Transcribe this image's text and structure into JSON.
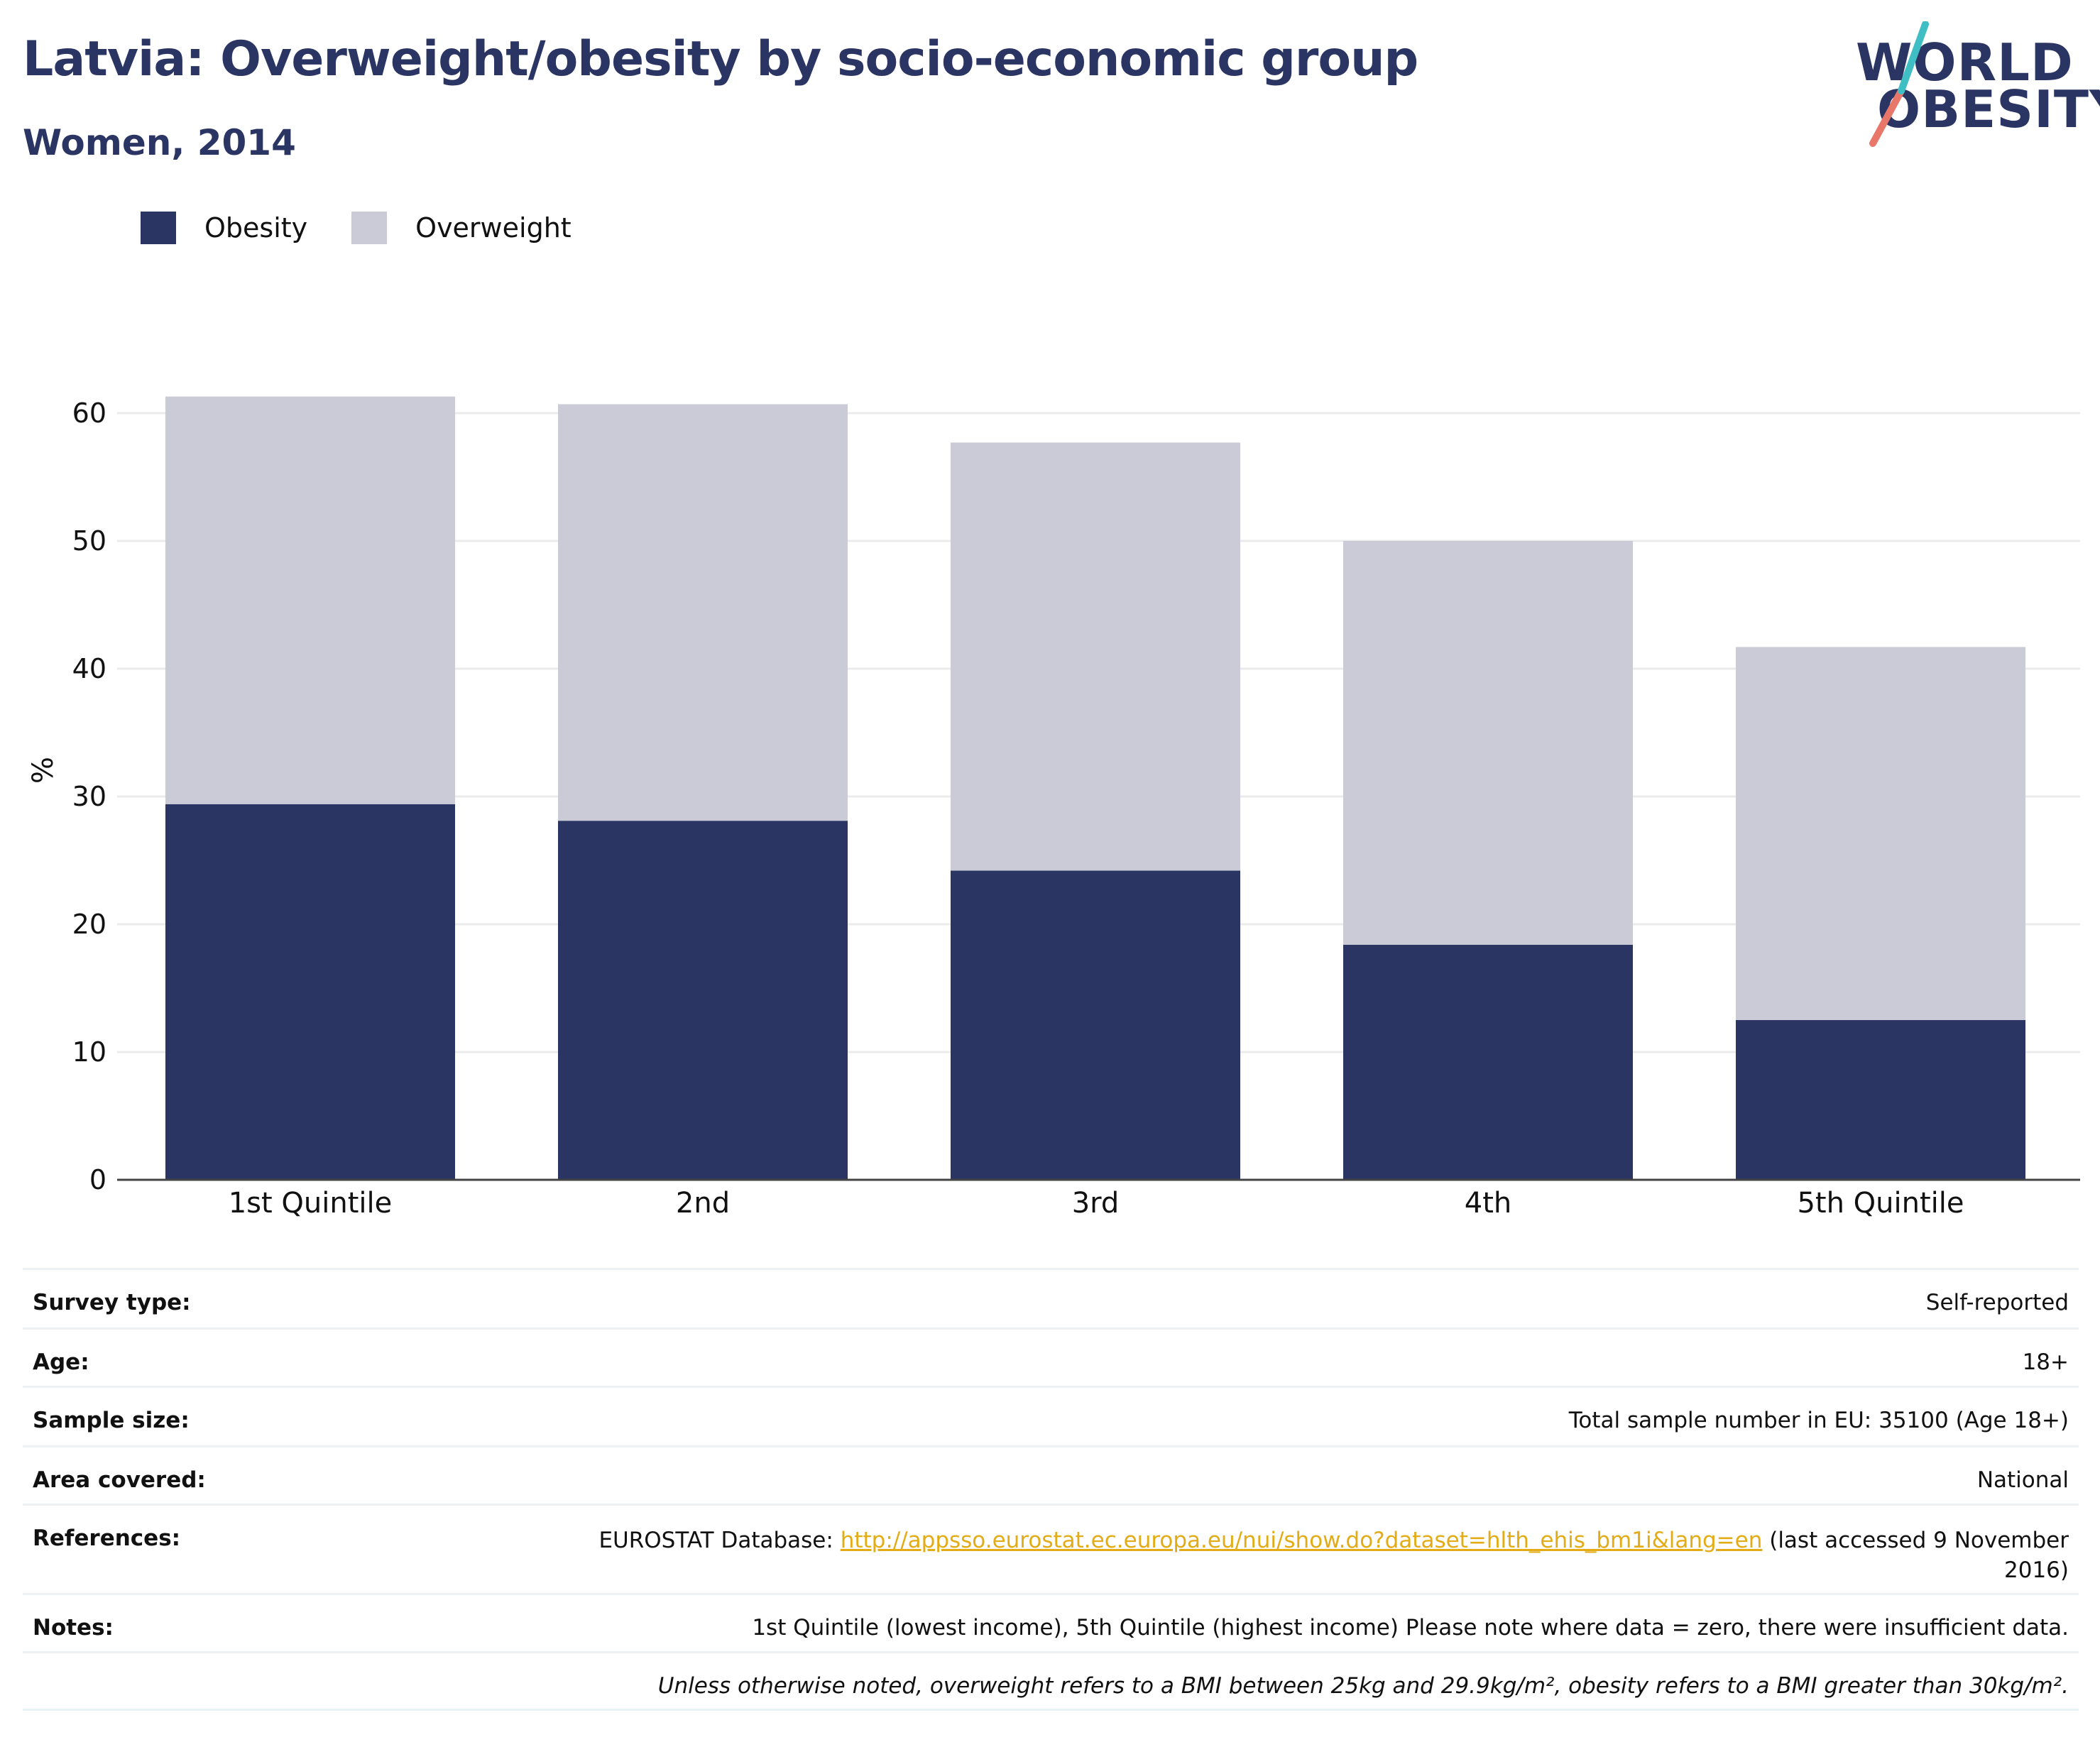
{
  "header": {
    "title": "Latvia: Overweight/obesity by socio-economic group",
    "subtitle": "Women, 2014"
  },
  "logo": {
    "line1": "WORLD",
    "line2": "OBESITY",
    "slash_color": "#e8776a",
    "slash_accent": "#3fbfc4"
  },
  "legend": {
    "items": [
      {
        "label": "Obesity",
        "color": "#2a3563"
      },
      {
        "label": "Overweight",
        "color": "#cacbd7"
      }
    ]
  },
  "chart_data": {
    "type": "bar",
    "stacked": true,
    "categories": [
      "1st Quintile",
      "2nd",
      "3rd",
      "4th",
      "5th Quintile"
    ],
    "series": [
      {
        "name": "Obesity",
        "color": "#2a3563",
        "values": [
          29.4,
          28.1,
          24.2,
          18.4,
          12.5
        ]
      },
      {
        "name": "Overweight",
        "color": "#cacbd7",
        "values": [
          31.9,
          32.6,
          33.5,
          31.6,
          29.2
        ]
      }
    ],
    "ylabel": "%",
    "ylim": [
      0,
      61.3
    ],
    "yticks": [
      0,
      10,
      20,
      30,
      40,
      50,
      60
    ],
    "grid": true,
    "legend_position": "top-left"
  },
  "meta": {
    "rows": [
      {
        "key": "Survey type:",
        "value": "Self-reported"
      },
      {
        "key": "Age:",
        "value": "18+"
      },
      {
        "key": "Sample size:",
        "value": "Total sample number in EU: 35100 (Age 18+)"
      },
      {
        "key": "Area covered:",
        "value": "National"
      }
    ],
    "references": {
      "key": "References:",
      "prefix": "EUROSTAT Database: ",
      "link": "http://appsso.eurostat.ec.europa.eu/nui/show.do?dataset=hlth_ehis_bm1i&lang=en",
      "suffix": " (last accessed 9 November 2016)"
    },
    "notes": {
      "key": "Notes:",
      "value": "1st Quintile (lowest income), 5th Quintile (highest income) Please note where data = zero, there were insufficient data."
    },
    "definition": "Unless otherwise noted, overweight refers to a BMI between 25kg and 29.9kg/m², obesity refers to a BMI greater than 30kg/m²."
  }
}
